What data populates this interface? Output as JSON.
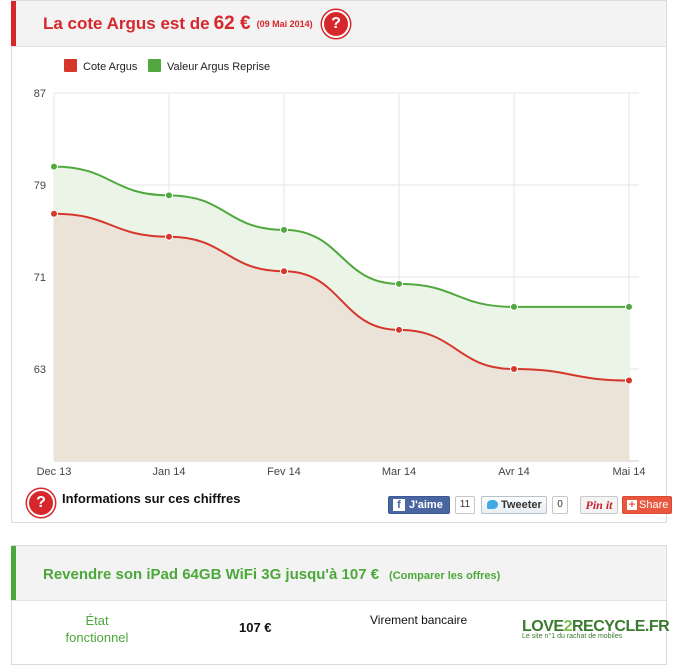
{
  "argus": {
    "title": "La cote Argus est de",
    "price": "62 €",
    "date": "(09 Mai 2014)",
    "help_glyph": "?",
    "accent_color": "#d6272c"
  },
  "chart_data": {
    "type": "area",
    "x": [
      "Dec 13",
      "Jan 14",
      "Fev 14",
      "Mar 14",
      "Avr 14",
      "Mai 14"
    ],
    "series": [
      {
        "name": "Cote Argus",
        "color": "#d6372c",
        "values": [
          76.5,
          74.5,
          71.5,
          66.4,
          63.0,
          62.0
        ]
      },
      {
        "name": "Valeur Argus Reprise",
        "color": "#50a83e",
        "values": [
          80.6,
          78.1,
          75.1,
          70.4,
          68.4,
          68.4
        ]
      }
    ],
    "yticks": [
      87,
      79,
      71,
      63
    ],
    "ylim": [
      55,
      87
    ],
    "grid": true,
    "legend": "top-left"
  },
  "info": {
    "label": "Informations sur ces chiffres",
    "help_glyph": "?"
  },
  "social": {
    "facebook_label": "J'aime",
    "facebook_glyph": "f",
    "facebook_count": "11",
    "twitter_label": "Tweeter",
    "twitter_count": "0",
    "pinterest_label": "Pin it",
    "share_label": "Share",
    "share_glyph": "+"
  },
  "resell": {
    "title": "Revendre son iPad 64GB WiFi 3G jusqu'à 107 €",
    "compare_label": "(Comparer les offres)",
    "accent_color": "#4ca83a",
    "offer": {
      "state_line1": "État",
      "state_line2": "fonctionnel",
      "price": "107 €",
      "payment": "Virement bancaire",
      "partner_logo": {
        "text_a": "LOVE",
        "text_b": "2",
        "text_c": "RECYCLE.FR",
        "tagline": "Le site n°1 du rachat de mobiles"
      }
    }
  }
}
